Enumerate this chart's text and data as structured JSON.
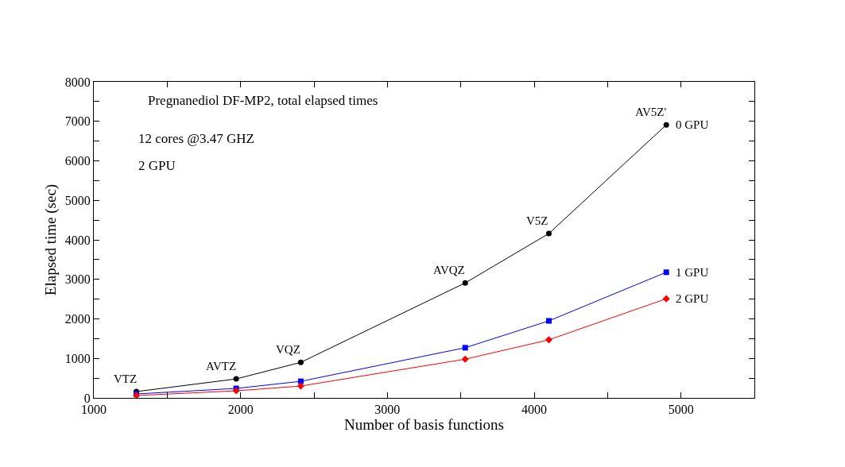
{
  "chart_data": {
    "type": "line",
    "xlabel": "Number of basis functions",
    "ylabel": "Elapsed time (sec)",
    "x": [
      1290,
      1970,
      2410,
      3530,
      4100,
      4900
    ],
    "series": [
      {
        "name": "0 GPU",
        "color": "#000000",
        "marker": "circle",
        "values": [
          160,
          480,
          900,
          2910,
          4160,
          6910
        ]
      },
      {
        "name": "1 GPU",
        "color": "#0000ff",
        "marker": "square",
        "values": [
          100,
          240,
          420,
          1270,
          1950,
          3180
        ]
      },
      {
        "name": "2 GPU",
        "color": "#ff0000",
        "marker": "diamond",
        "values": [
          60,
          180,
          300,
          980,
          1470,
          2510
        ]
      }
    ],
    "xlim": [
      1000,
      5500
    ],
    "xticks": [
      1000,
      {
        "value": 1500,
        "label": null
      },
      2000,
      {
        "value": 2500,
        "label": null
      },
      3000,
      {
        "value": 3500,
        "label": null
      },
      4000,
      {
        "value": 4500,
        "label": null
      },
      5000,
      {
        "value": 5500,
        "label": null
      }
    ],
    "ylim": [
      0,
      8000
    ],
    "yticks": [
      0,
      {
        "value": 500,
        "label": null
      },
      1000,
      {
        "value": 1500,
        "label": null
      },
      2000,
      {
        "value": 2500,
        "label": null
      },
      3000,
      {
        "value": 3500,
        "label": null
      },
      4000,
      {
        "value": 4500,
        "label": null
      },
      5000,
      {
        "value": 5500,
        "label": null
      },
      6000,
      {
        "value": 6500,
        "label": null
      },
      7000,
      {
        "value": 7500,
        "label": null
      },
      8000
    ],
    "grid": false,
    "legend": false,
    "line_style": "solid",
    "annotations": [
      "Pregnanediol DF-MP2, total elapsed times",
      "12 cores @3.47 GHZ",
      "2 GPU",
      {
        "text": "VTZ",
        "x": 1290,
        "y": 160
      },
      {
        "text": "AVTZ",
        "x": 1970,
        "y": 480
      },
      {
        "text": "VQZ",
        "x": 2410,
        "y": 900
      },
      {
        "text": "AVQZ",
        "x": 3530,
        "y": 2910
      },
      {
        "text": "V5Z",
        "x": 4100,
        "y": 4160
      },
      {
        "text": "AV5Z'",
        "x": 4900,
        "y": 6910
      }
    ]
  }
}
